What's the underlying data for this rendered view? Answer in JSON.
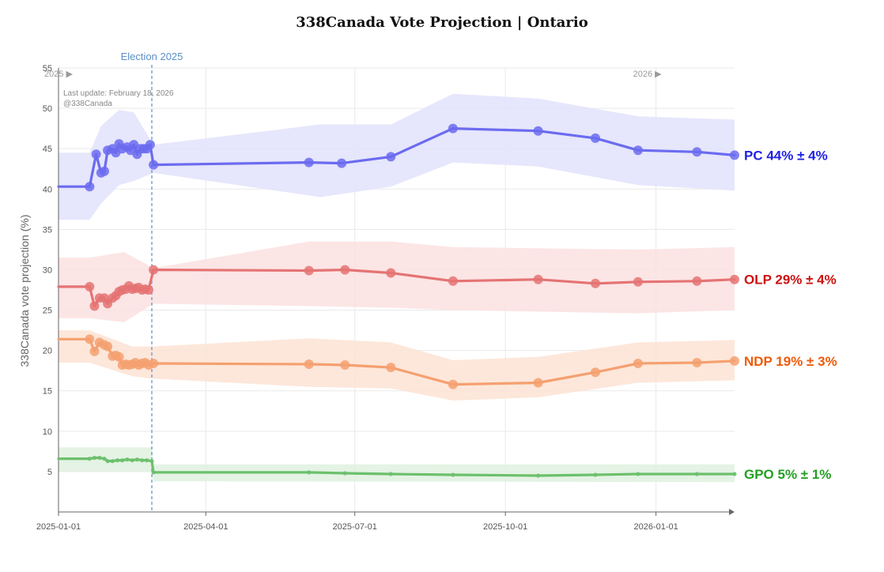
{
  "chart_data": {
    "type": "line",
    "title": "338Canada Vote Projection | Ontario",
    "ylabel": "338Canada vote projection (%)",
    "xlabel": "",
    "ylim": [
      0,
      55
    ],
    "yticks": [
      5,
      10,
      15,
      20,
      25,
      30,
      35,
      40,
      45,
      50,
      55
    ],
    "x_range": [
      "2025-01-01",
      "2026-02-18"
    ],
    "xticks": [
      "2025-01-01",
      "2025-04-01",
      "2025-07-01",
      "2025-10-01",
      "2026-01-01"
    ],
    "grid": true,
    "annotations": {
      "election_label": "Election 2025",
      "election_date": "2025-02-27",
      "last_update": "Last update: February 18, 2026",
      "credit": "@338Canada",
      "year_start": "2025 ▶",
      "year_next": "2026 ▶",
      "year_next_date": "2025-12-18"
    },
    "series": [
      {
        "name": "PC",
        "label": "PC 44% ± 4%",
        "color": "#1f1fe6",
        "line_color": "#6b6bf0",
        "band_color": "#e2e2fb",
        "marker": "large",
        "points": [
          [
            "2025-01-01",
            40.3
          ],
          [
            "2025-01-20",
            40.3
          ],
          [
            "2025-01-24",
            44.3
          ],
          [
            "2025-01-27",
            42
          ],
          [
            "2025-01-29",
            42.2
          ],
          [
            "2025-01-31",
            44.8
          ],
          [
            "2025-02-03",
            45
          ],
          [
            "2025-02-05",
            44.5
          ],
          [
            "2025-02-07",
            45.6
          ],
          [
            "2025-02-09",
            45
          ],
          [
            "2025-02-12",
            45.2
          ],
          [
            "2025-02-14",
            44.8
          ],
          [
            "2025-02-16",
            45.5
          ],
          [
            "2025-02-18",
            44.3
          ],
          [
            "2025-02-20",
            45
          ],
          [
            "2025-02-22",
            45
          ],
          [
            "2025-02-24",
            45
          ],
          [
            "2025-02-26",
            45.5
          ],
          [
            "2025-02-28",
            43
          ],
          [
            "2025-06-03",
            43.3
          ],
          [
            "2025-06-23",
            43.2
          ],
          [
            "2025-07-23",
            44
          ],
          [
            "2025-08-30",
            47.5
          ],
          [
            "2025-10-21",
            47.2
          ],
          [
            "2025-11-25",
            46.3
          ],
          [
            "2025-12-21",
            44.8
          ],
          [
            "2026-01-26",
            44.6
          ],
          [
            "2026-02-18",
            44.2
          ]
        ],
        "band": [
          [
            "2025-01-01",
            36.2,
            44.5
          ],
          [
            "2025-01-20",
            36.2,
            44.5
          ],
          [
            "2025-01-27",
            38.2,
            47.8
          ],
          [
            "2025-02-07",
            40.5,
            49.8
          ],
          [
            "2025-02-16",
            41,
            49.5
          ],
          [
            "2025-02-28",
            42,
            45.5
          ],
          [
            "2025-06-10",
            39,
            48
          ],
          [
            "2025-07-23",
            40.3,
            48
          ],
          [
            "2025-08-30",
            43.3,
            51.8
          ],
          [
            "2025-10-21",
            42.8,
            51.2
          ],
          [
            "2025-12-21",
            40.5,
            49
          ],
          [
            "2026-02-18",
            39.8,
            48.6
          ]
        ]
      },
      {
        "name": "OLP",
        "label": "OLP 29% ± 4%",
        "color": "#cc1111",
        "line_color": "#e57373",
        "band_color": "#fbe1e1",
        "marker": "large",
        "points": [
          [
            "2025-01-01",
            27.9
          ],
          [
            "2025-01-20",
            27.9
          ],
          [
            "2025-01-23",
            25.5
          ],
          [
            "2025-01-26",
            26.5
          ],
          [
            "2025-01-29",
            26.5
          ],
          [
            "2025-01-31",
            25.8
          ],
          [
            "2025-02-03",
            26.5
          ],
          [
            "2025-02-05",
            26.8
          ],
          [
            "2025-02-07",
            27.3
          ],
          [
            "2025-02-09",
            27.5
          ],
          [
            "2025-02-11",
            27.6
          ],
          [
            "2025-02-13",
            28
          ],
          [
            "2025-02-15",
            27.6
          ],
          [
            "2025-02-17",
            27.7
          ],
          [
            "2025-02-19",
            27.8
          ],
          [
            "2025-02-21",
            27.5
          ],
          [
            "2025-02-23",
            27.6
          ],
          [
            "2025-02-25",
            27.5
          ],
          [
            "2025-02-28",
            30
          ],
          [
            "2025-06-03",
            29.9
          ],
          [
            "2025-06-25",
            30
          ],
          [
            "2025-07-23",
            29.6
          ],
          [
            "2025-08-30",
            28.6
          ],
          [
            "2025-10-21",
            28.8
          ],
          [
            "2025-11-25",
            28.3
          ],
          [
            "2025-12-21",
            28.5
          ],
          [
            "2026-01-26",
            28.6
          ],
          [
            "2026-02-18",
            28.8
          ]
        ],
        "band": [
          [
            "2025-01-01",
            24,
            31.5
          ],
          [
            "2025-01-20",
            24,
            31.5
          ],
          [
            "2025-02-10",
            23.5,
            32.2
          ],
          [
            "2025-02-28",
            25.8,
            30.2
          ],
          [
            "2025-06-03",
            25.5,
            33.5
          ],
          [
            "2025-07-23",
            25.3,
            33.5
          ],
          [
            "2025-08-30",
            25,
            32.8
          ],
          [
            "2025-12-21",
            24.6,
            32.5
          ],
          [
            "2026-02-18",
            25,
            32.8
          ]
        ]
      },
      {
        "name": "NDP",
        "label": "NDP 19% ± 3%",
        "color": "#ee5a0a",
        "line_color": "#f5a070",
        "band_color": "#fde3d3",
        "marker": "large",
        "points": [
          [
            "2025-01-01",
            21.4
          ],
          [
            "2025-01-20",
            21.4
          ],
          [
            "2025-01-23",
            19.9
          ],
          [
            "2025-01-26",
            21
          ],
          [
            "2025-01-29",
            20.7
          ],
          [
            "2025-01-31",
            20.5
          ],
          [
            "2025-02-03",
            19.3
          ],
          [
            "2025-02-05",
            19.4
          ],
          [
            "2025-02-07",
            19.2
          ],
          [
            "2025-02-09",
            18.2
          ],
          [
            "2025-02-11",
            18.3
          ],
          [
            "2025-02-13",
            18.2
          ],
          [
            "2025-02-15",
            18.3
          ],
          [
            "2025-02-17",
            18.5
          ],
          [
            "2025-02-19",
            18.2
          ],
          [
            "2025-02-21",
            18.4
          ],
          [
            "2025-02-23",
            18.5
          ],
          [
            "2025-02-25",
            18.2
          ],
          [
            "2025-02-28",
            18.4
          ],
          [
            "2025-06-03",
            18.3
          ],
          [
            "2025-06-25",
            18.2
          ],
          [
            "2025-07-23",
            17.9
          ],
          [
            "2025-08-30",
            15.8
          ],
          [
            "2025-10-21",
            16
          ],
          [
            "2025-11-25",
            17.3
          ],
          [
            "2025-12-21",
            18.4
          ],
          [
            "2026-01-26",
            18.5
          ],
          [
            "2026-02-18",
            18.7
          ]
        ],
        "band": [
          [
            "2025-01-01",
            18.5,
            22.5
          ],
          [
            "2025-01-20",
            18.5,
            22.5
          ],
          [
            "2025-02-15",
            16.8,
            20.5
          ],
          [
            "2025-02-28",
            16.5,
            20.5
          ],
          [
            "2025-06-03",
            15.5,
            21.5
          ],
          [
            "2025-07-23",
            15.3,
            21
          ],
          [
            "2025-08-30",
            13.8,
            18.8
          ],
          [
            "2025-10-21",
            14.2,
            19.2
          ],
          [
            "2025-12-21",
            16,
            21
          ],
          [
            "2026-02-18",
            16.3,
            21.3
          ]
        ]
      },
      {
        "name": "GPO",
        "label": "GPO 5% ± 1%",
        "color": "#22a022",
        "line_color": "#6cc06c",
        "band_color": "#dff1df",
        "marker": "small",
        "points": [
          [
            "2025-01-01",
            6.6
          ],
          [
            "2025-01-20",
            6.6
          ],
          [
            "2025-01-23",
            6.7
          ],
          [
            "2025-01-26",
            6.7
          ],
          [
            "2025-01-29",
            6.6
          ],
          [
            "2025-01-31",
            6.3
          ],
          [
            "2025-02-03",
            6.3
          ],
          [
            "2025-02-06",
            6.4
          ],
          [
            "2025-02-09",
            6.4
          ],
          [
            "2025-02-12",
            6.5
          ],
          [
            "2025-02-15",
            6.4
          ],
          [
            "2025-02-18",
            6.5
          ],
          [
            "2025-02-21",
            6.4
          ],
          [
            "2025-02-24",
            6.4
          ],
          [
            "2025-02-27",
            6.3
          ],
          [
            "2025-02-28",
            4.9
          ],
          [
            "2025-06-03",
            4.9
          ],
          [
            "2025-06-25",
            4.8
          ],
          [
            "2025-07-23",
            4.7
          ],
          [
            "2025-08-30",
            4.6
          ],
          [
            "2025-10-21",
            4.5
          ],
          [
            "2025-11-25",
            4.6
          ],
          [
            "2025-12-21",
            4.7
          ],
          [
            "2026-01-26",
            4.7
          ],
          [
            "2026-02-18",
            4.7
          ]
        ],
        "band": [
          [
            "2025-01-01",
            5,
            8
          ],
          [
            "2025-02-27",
            5,
            8
          ],
          [
            "2025-02-28",
            3.8,
            5.9
          ],
          [
            "2026-02-18",
            3.7,
            5.9
          ]
        ]
      }
    ]
  }
}
